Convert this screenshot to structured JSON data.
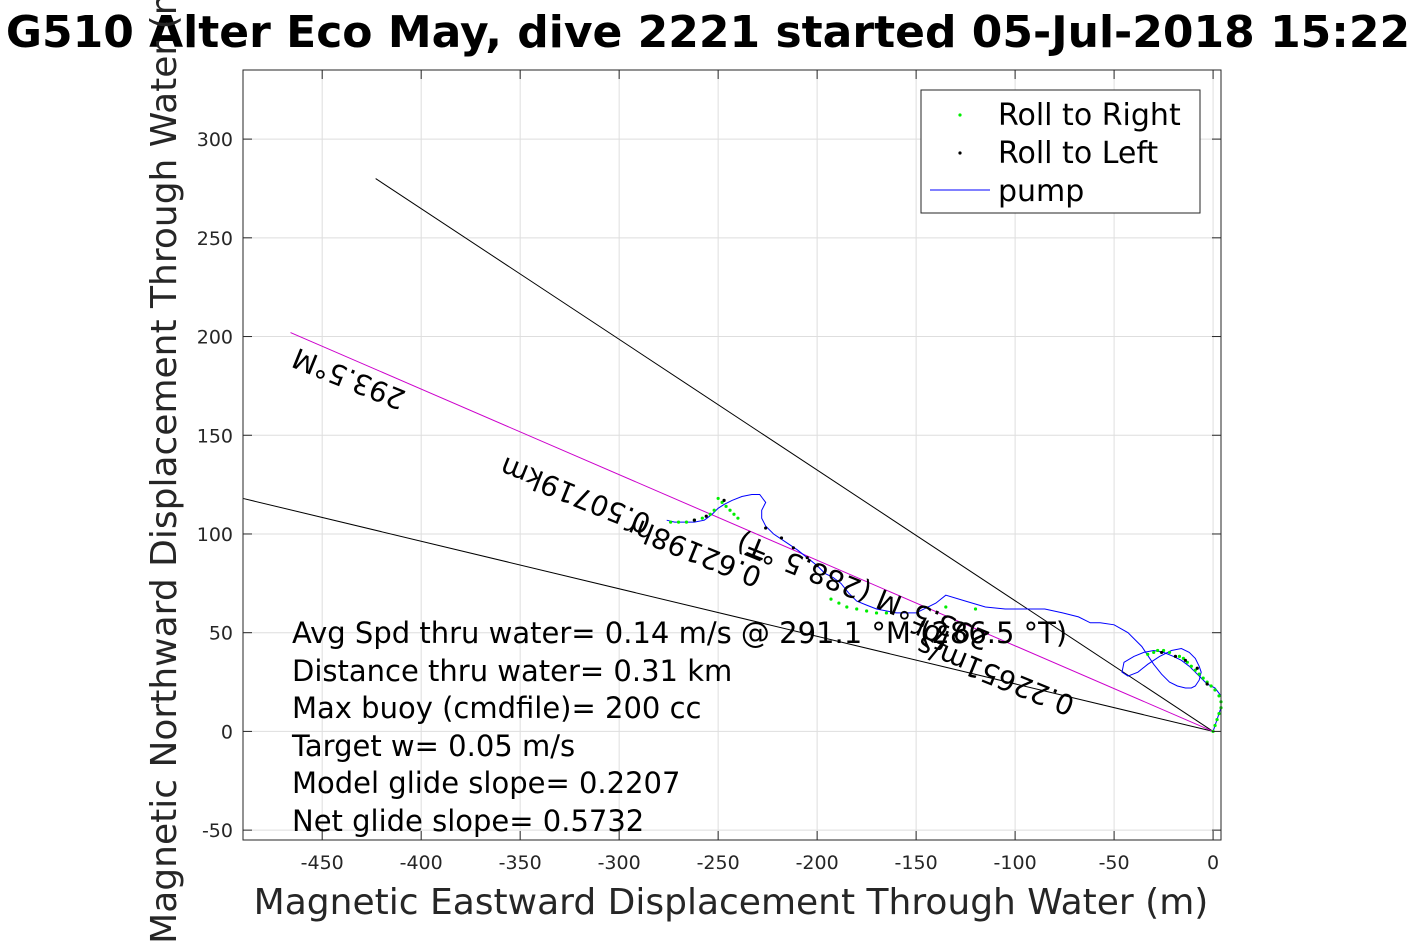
{
  "chart_data": {
    "type": "scatter",
    "title": "G510 Alter Eco May, dive 2221 started 05-Jul-2018 15:22",
    "xlabel": "Magnetic Eastward Displacement Through Water (m)",
    "ylabel": "Magnetic Northward Displacement Through Water (m)",
    "xlim": [
      -490,
      4
    ],
    "ylim": [
      -55,
      335
    ],
    "xticks": [
      -450,
      -400,
      -350,
      -300,
      -250,
      -200,
      -150,
      -100,
      -50,
      0
    ],
    "yticks": [
      -50,
      0,
      50,
      100,
      150,
      200,
      250,
      300
    ],
    "grid": true,
    "legend_position": "top-right",
    "legend": [
      {
        "label": "Roll to Right",
        "color": "#00ee00",
        "marker": "dot"
      },
      {
        "label": "Roll to Left",
        "color": "#000000",
        "marker": "dot"
      },
      {
        "label": "pump",
        "color": "#0000ff",
        "marker": "line"
      }
    ],
    "lines": [
      {
        "color": "#000000",
        "x": [
          0,
          -423
        ],
        "y": [
          0,
          280
        ]
      },
      {
        "color": "#000000",
        "x": [
          0,
          -490
        ],
        "y": [
          0,
          118
        ]
      },
      {
        "color": "#cc00cc",
        "x": [
          0,
          -466
        ],
        "y": [
          0,
          202
        ]
      }
    ],
    "series": [
      {
        "name": "pump",
        "color": "#0000ff",
        "x": [
          0,
          2,
          4,
          4,
          1,
          -3,
          -6,
          -9,
          -12,
          -16,
          -20,
          -25,
          -30,
          -35,
          -40,
          -45,
          -46,
          -43,
          -38,
          -33,
          -27,
          -21,
          -16,
          -12,
          -9,
          -7,
          -6,
          -7,
          -9,
          -11,
          -14,
          -18,
          -22,
          -26,
          -30,
          -36,
          -43,
          -50,
          -57,
          -62,
          -68,
          -76,
          -85,
          -95,
          -105,
          -115,
          -125,
          -135,
          -140,
          -150,
          -160,
          -170,
          -175,
          -180,
          -184,
          -188,
          -192,
          -196,
          -200,
          -205,
          -210,
          -216,
          -222,
          -226,
          -228,
          -228,
          -226,
          -229,
          -233,
          -238,
          -243,
          -247,
          -250,
          -253,
          -257,
          -262,
          -268,
          -272,
          -276
        ],
        "y": [
          0,
          6,
          12,
          18,
          22,
          24,
          27,
          30,
          33,
          36,
          38,
          40,
          41,
          40,
          38,
          35,
          30,
          28,
          30,
          34,
          38,
          41,
          42,
          40,
          37,
          33,
          30,
          26,
          23,
          22,
          22,
          23,
          25,
          29,
          34,
          43,
          50,
          54,
          55,
          55,
          58,
          60,
          62,
          62,
          62,
          63,
          66,
          69,
          65,
          60,
          60,
          62,
          64,
          66,
          70,
          75,
          78,
          80,
          84,
          88,
          92,
          96,
          100,
          104,
          108,
          112,
          116,
          120,
          120,
          119,
          117,
          115,
          113,
          110,
          107,
          106,
          106,
          106,
          107
        ]
      },
      {
        "name": "Roll to Right",
        "color": "#00ee00",
        "x": [
          0,
          1,
          2,
          3,
          4,
          4,
          3,
          1,
          -1,
          -3,
          -5,
          -7,
          -9,
          -11,
          -13,
          -15,
          -17,
          -22,
          -25,
          -28,
          -30,
          -33,
          -120,
          -135,
          -165,
          -170,
          -175,
          -180,
          -185,
          -189,
          -193,
          -240,
          -242,
          -244,
          -246,
          -248,
          -250,
          -252,
          -254,
          -258,
          -262,
          -266,
          -270,
          -274
        ],
        "y": [
          0,
          3,
          6,
          9,
          12,
          15,
          18,
          21,
          23,
          25,
          27,
          29,
          31,
          33,
          35,
          37,
          38,
          40,
          41,
          41,
          40,
          39,
          62,
          63,
          60,
          60,
          61,
          62,
          63,
          65,
          67,
          108,
          110,
          112,
          114,
          116,
          118,
          112,
          110,
          108,
          107,
          106,
          106,
          106
        ]
      },
      {
        "name": "Roll to Left",
        "color": "#000000",
        "x": [
          -3,
          -8,
          -14,
          -19,
          -26,
          -200,
          -205,
          -212,
          -218,
          -226,
          -247,
          -256,
          -262
        ],
        "y": [
          24,
          32,
          36,
          38,
          40,
          84,
          88,
          93,
          98,
          103,
          117,
          109,
          107
        ]
      }
    ],
    "annotations": [
      {
        "text": "293.5°M",
        "x": -407,
        "y": 172,
        "angle": 202
      },
      {
        "text": "0.50719km",
        "x": -283,
        "y": 109,
        "angle": 202
      },
      {
        "text": "293.5°M (288.5 °T)",
        "x": -112,
        "y": 50,
        "angle": 202
      },
      {
        "text": "0.62198hr",
        "x": -227,
        "y": 82,
        "angle": 202
      },
      {
        "text": "=",
        "x": -224,
        "y": 92,
        "angle": 202
      },
      {
        "text": "0.22651m/s",
        "x": -69,
        "y": 17,
        "angle": 202
      },
      {
        "text": "for",
        "x": -132,
        "y": 50,
        "angle": 202
      }
    ],
    "stats": [
      "Avg Spd thru water=  0.14 m/s @ 291.1 °M (286.5 °T)",
      "Distance thru water=  0.31 km",
      "Max buoy (cmdfile)= 200 cc",
      "Target w= 0.05 m/s",
      "Model glide slope= 0.2207",
      "Net glide slope= 0.5732"
    ]
  }
}
